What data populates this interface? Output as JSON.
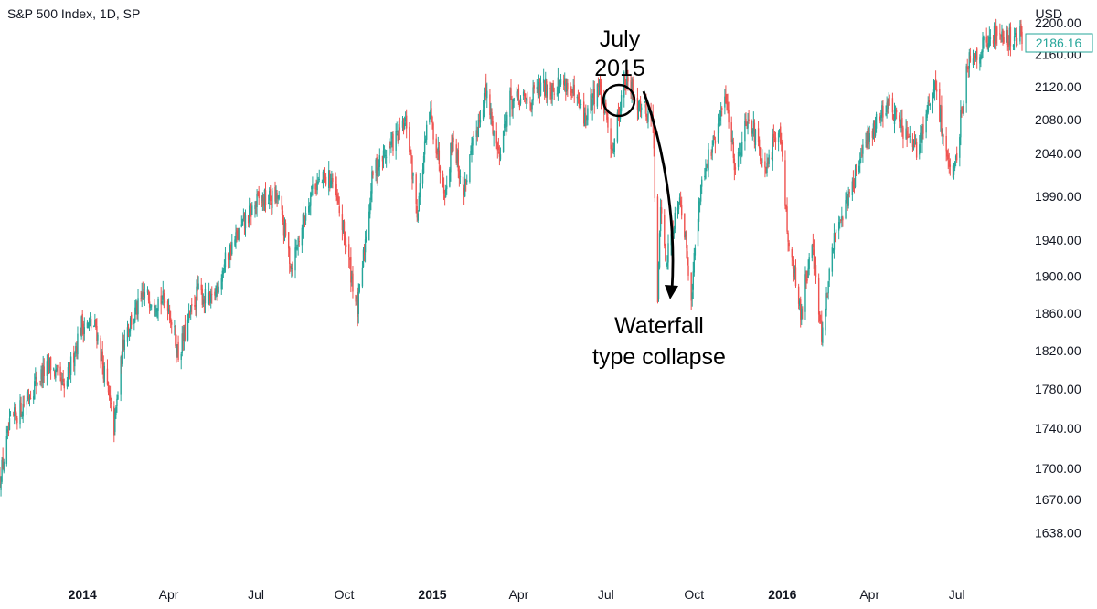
{
  "header": {
    "title": "S&P 500 Index, 1D, SP",
    "currency": "USD"
  },
  "price_tag": {
    "value": "2186.16",
    "color": "#26a69a"
  },
  "annotations": {
    "peak_label_line1": "July",
    "peak_label_line2": "2015",
    "collapse_line1": "Waterfall",
    "collapse_line2": "type collapse"
  },
  "chart_data": {
    "type": "candlestick",
    "title": "S&P 500 Index, 1D, SP",
    "ylabel": "USD",
    "y_scale": "log",
    "ylim": [
      1600,
      2215
    ],
    "y_ticks": [
      "2200.00",
      "2160.00",
      "2120.00",
      "2080.00",
      "2040.00",
      "1990.00",
      "1940.00",
      "1900.00",
      "1860.00",
      "1820.00",
      "1780.00",
      "1740.00",
      "1700.00",
      "1670.00",
      "1638.00"
    ],
    "x_ticks": [
      {
        "label": "2014",
        "date": "2014-01-01",
        "bold": true
      },
      {
        "label": "Apr",
        "date": "2014-04-01",
        "bold": false
      },
      {
        "label": "Jul",
        "date": "2014-07-01",
        "bold": false
      },
      {
        "label": "Oct",
        "date": "2014-10-01",
        "bold": false
      },
      {
        "label": "2015",
        "date": "2015-01-01",
        "bold": true
      },
      {
        "label": "Apr",
        "date": "2015-04-01",
        "bold": false
      },
      {
        "label": "Jul",
        "date": "2015-07-01",
        "bold": false
      },
      {
        "label": "Oct",
        "date": "2015-10-01",
        "bold": false
      },
      {
        "label": "2016",
        "date": "2016-01-01",
        "bold": true
      },
      {
        "label": "Apr",
        "date": "2016-04-01",
        "bold": false
      },
      {
        "label": "Jul",
        "date": "2016-07-01",
        "bold": false
      }
    ],
    "up_color": "#26a69a",
    "down_color": "#ef5350",
    "series": [
      {
        "name": "S&P 500",
        "points": [
          [
            "2013-10-07",
            1690
          ],
          [
            "2013-10-18",
            1745
          ],
          [
            "2013-11-01",
            1765
          ],
          [
            "2013-11-15",
            1790
          ],
          [
            "2013-11-29",
            1805
          ],
          [
            "2013-12-13",
            1778
          ],
          [
            "2013-12-31",
            1848
          ],
          [
            "2014-01-15",
            1845
          ],
          [
            "2014-02-03",
            1740
          ],
          [
            "2014-02-14",
            1840
          ],
          [
            "2014-03-07",
            1878
          ],
          [
            "2014-03-31",
            1872
          ],
          [
            "2014-04-11",
            1815
          ],
          [
            "2014-05-01",
            1883
          ],
          [
            "2014-05-15",
            1870
          ],
          [
            "2014-06-02",
            1925
          ],
          [
            "2014-06-20",
            1962
          ],
          [
            "2014-07-03",
            1985
          ],
          [
            "2014-07-24",
            1988
          ],
          [
            "2014-08-07",
            1910
          ],
          [
            "2014-08-29",
            2003
          ],
          [
            "2014-09-18",
            2011
          ],
          [
            "2014-10-01",
            1946
          ],
          [
            "2014-10-15",
            1862
          ],
          [
            "2014-10-31",
            2018
          ],
          [
            "2014-11-20",
            2052
          ],
          [
            "2014-12-05",
            2075
          ],
          [
            "2014-12-16",
            1972
          ],
          [
            "2014-12-29",
            2090
          ],
          [
            "2015-01-15",
            1993
          ],
          [
            "2015-01-22",
            2063
          ],
          [
            "2015-02-02",
            1994
          ],
          [
            "2015-02-25",
            2115
          ],
          [
            "2015-03-11",
            2040
          ],
          [
            "2015-03-23",
            2104
          ],
          [
            "2015-04-10",
            2102
          ],
          [
            "2015-04-24",
            2117
          ],
          [
            "2015-05-20",
            2126
          ],
          [
            "2015-06-09",
            2080
          ],
          [
            "2015-06-23",
            2124
          ],
          [
            "2015-07-08",
            2046
          ],
          [
            "2015-07-20",
            2128
          ],
          [
            "2015-08-05",
            2100
          ],
          [
            "2015-08-19",
            2080
          ],
          [
            "2015-08-24",
            1867
          ],
          [
            "2015-08-27",
            1987
          ],
          [
            "2015-09-01",
            1913
          ],
          [
            "2015-09-16",
            1995
          ],
          [
            "2015-09-28",
            1881
          ],
          [
            "2015-10-09",
            2014
          ],
          [
            "2015-10-22",
            2052
          ],
          [
            "2015-11-03",
            2109
          ],
          [
            "2015-11-13",
            2023
          ],
          [
            "2015-11-27",
            2090
          ],
          [
            "2015-12-14",
            2012
          ],
          [
            "2015-12-29",
            2078
          ],
          [
            "2016-01-07",
            1943
          ],
          [
            "2016-01-20",
            1859
          ],
          [
            "2016-02-01",
            1940
          ],
          [
            "2016-02-11",
            1829
          ],
          [
            "2016-02-25",
            1951
          ],
          [
            "2016-03-10",
            1989
          ],
          [
            "2016-03-31",
            2060
          ],
          [
            "2016-04-20",
            2102
          ],
          [
            "2016-05-19",
            2040
          ],
          [
            "2016-06-08",
            2119
          ],
          [
            "2016-06-27",
            2000
          ],
          [
            "2016-07-12",
            2152
          ],
          [
            "2016-07-28",
            2170
          ],
          [
            "2016-08-15",
            2190
          ],
          [
            "2016-08-30",
            2176
          ],
          [
            "2016-09-07",
            2186
          ]
        ]
      }
    ]
  }
}
